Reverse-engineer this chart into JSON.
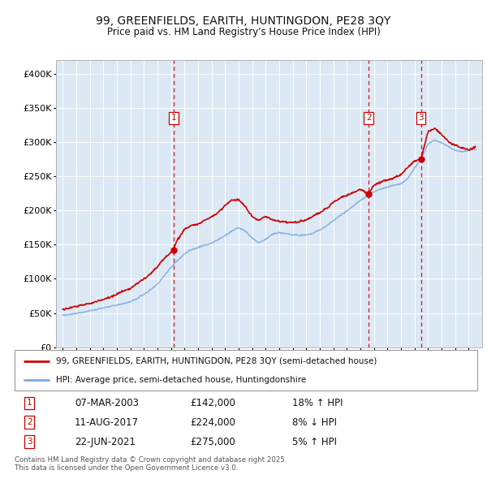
{
  "title": "99, GREENFIELDS, EARITH, HUNTINGDON, PE28 3QY",
  "subtitle": "Price paid vs. HM Land Registry's House Price Index (HPI)",
  "red_line_label": "99, GREENFIELDS, EARITH, HUNTINGDON, PE28 3QY (semi-detached house)",
  "blue_line_label": "HPI: Average price, semi-detached house, Huntingdonshire",
  "sales": [
    {
      "num": 1,
      "date": "07-MAR-2003",
      "price": 142000,
      "hpi_diff": "18% ↑ HPI"
    },
    {
      "num": 2,
      "date": "11-AUG-2017",
      "price": 224000,
      "hpi_diff": "8% ↓ HPI"
    },
    {
      "num": 3,
      "date": "22-JUN-2021",
      "price": 275000,
      "hpi_diff": "5% ↑ HPI"
    }
  ],
  "sale_years": [
    2003.18,
    2017.61,
    2021.47
  ],
  "sale_prices": [
    142000,
    224000,
    275000
  ],
  "ylim": [
    0,
    420000
  ],
  "yticks": [
    0,
    50000,
    100000,
    150000,
    200000,
    250000,
    300000,
    350000,
    400000
  ],
  "ytick_labels": [
    "£0",
    "£50K",
    "£100K",
    "£150K",
    "£200K",
    "£250K",
    "£300K",
    "£350K",
    "£400K"
  ],
  "footnote": "Contains HM Land Registry data © Crown copyright and database right 2025.\nThis data is licensed under the Open Government Licence v3.0.",
  "bg_color": "#dce9f5",
  "red_color": "#cc0000",
  "blue_color": "#7aaadd",
  "grid_color": "#ffffff",
  "hpi_keypoints_x": [
    1995.0,
    1995.5,
    1996.0,
    1996.5,
    1997.0,
    1997.5,
    1998.0,
    1998.5,
    1999.0,
    1999.5,
    2000.0,
    2000.5,
    2001.0,
    2001.5,
    2002.0,
    2002.5,
    2003.0,
    2003.5,
    2004.0,
    2004.5,
    2005.0,
    2005.5,
    2006.0,
    2006.5,
    2007.0,
    2007.5,
    2008.0,
    2008.5,
    2009.0,
    2009.5,
    2010.0,
    2010.5,
    2011.0,
    2011.5,
    2012.0,
    2012.5,
    2013.0,
    2013.5,
    2014.0,
    2014.5,
    2015.0,
    2015.5,
    2016.0,
    2016.5,
    2017.0,
    2017.5,
    2018.0,
    2018.5,
    2019.0,
    2019.5,
    2020.0,
    2020.5,
    2021.0,
    2021.5,
    2022.0,
    2022.5,
    2023.0,
    2023.5,
    2024.0,
    2024.5,
    2025.0,
    2025.5
  ],
  "hpi_keypoints_y": [
    47000,
    48000,
    49500,
    51000,
    53000,
    55000,
    57500,
    59500,
    62000,
    64500,
    67000,
    72000,
    78000,
    85000,
    93000,
    105000,
    117000,
    128000,
    137000,
    143000,
    147000,
    150000,
    153000,
    158000,
    164000,
    171000,
    175000,
    170000,
    160000,
    153000,
    158000,
    165000,
    168000,
    166000,
    165000,
    164000,
    165000,
    167000,
    172000,
    178000,
    185000,
    193000,
    200000,
    207000,
    215000,
    222000,
    228000,
    232000,
    235000,
    238000,
    240000,
    248000,
    263000,
    278000,
    298000,
    305000,
    300000,
    295000,
    290000,
    288000,
    290000,
    292000
  ],
  "red_keypoints_x": [
    1995.0,
    1995.5,
    1996.0,
    1996.5,
    1997.0,
    1997.5,
    1998.0,
    1998.5,
    1999.0,
    1999.5,
    2000.0,
    2000.5,
    2001.0,
    2001.5,
    2002.0,
    2002.5,
    2003.0,
    2003.18,
    2003.5,
    2004.0,
    2004.5,
    2005.0,
    2005.5,
    2006.0,
    2006.5,
    2007.0,
    2007.5,
    2008.0,
    2008.5,
    2009.0,
    2009.5,
    2010.0,
    2010.5,
    2011.0,
    2011.5,
    2012.0,
    2012.5,
    2013.0,
    2013.5,
    2014.0,
    2014.5,
    2015.0,
    2015.5,
    2016.0,
    2016.5,
    2017.0,
    2017.61,
    2018.0,
    2018.5,
    2019.0,
    2019.5,
    2020.0,
    2020.5,
    2021.0,
    2021.47,
    2022.0,
    2022.5,
    2023.0,
    2023.5,
    2024.0,
    2024.5,
    2025.0,
    2025.5
  ],
  "red_keypoints_y": [
    55000,
    57000,
    59000,
    61000,
    63000,
    66000,
    69000,
    73000,
    77000,
    81000,
    85000,
    93000,
    100000,
    108000,
    118000,
    130000,
    138000,
    142000,
    158000,
    172000,
    178000,
    180000,
    185000,
    190000,
    197000,
    207000,
    215000,
    215000,
    205000,
    190000,
    185000,
    190000,
    185000,
    183000,
    182000,
    181000,
    183000,
    186000,
    191000,
    196000,
    203000,
    212000,
    218000,
    222000,
    226000,
    230000,
    224000,
    237000,
    242000,
    245000,
    248000,
    252000,
    263000,
    272000,
    275000,
    315000,
    320000,
    310000,
    300000,
    295000,
    290000,
    288000,
    292000
  ]
}
